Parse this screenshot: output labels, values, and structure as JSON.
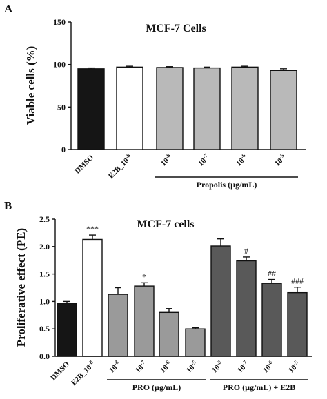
{
  "panels": {
    "a": {
      "letter": "A"
    },
    "b": {
      "letter": "B"
    }
  },
  "colors": {
    "black": "#151515",
    "white": "#ffffff",
    "light_gray": "#b9b9b9",
    "mid_gray": "#9a9a9a",
    "dark_gray": "#595959"
  },
  "chart_data": [
    {
      "type": "bar",
      "title": "MCF-7 Cells",
      "xlabel": "",
      "ylabel": "Viable cells (%)",
      "ylim": [
        0,
        150
      ],
      "yticks": [
        "0",
        "50",
        "100",
        "150"
      ],
      "categories": [
        "DMSO",
        "E2B_10-8",
        "10-8",
        "10-7",
        "10-6",
        "10-5"
      ],
      "values": [
        95,
        97,
        96.5,
        96,
        97,
        93
      ],
      "errors": [
        1,
        1,
        1,
        1,
        1,
        2
      ],
      "fills": [
        "black",
        "white",
        "light_gray",
        "light_gray",
        "light_gray",
        "light_gray"
      ],
      "groups": [
        {
          "label": "Propolis (µg/mL)",
          "from": 2,
          "to": 5
        }
      ],
      "grid": false
    },
    {
      "type": "bar",
      "title": "MCF-7 cells",
      "xlabel": "",
      "ylabel": "Proliferative effect (PE)",
      "ylim": [
        0,
        2.5
      ],
      "yticks": [
        "0.0",
        "0.5",
        "1.0",
        "1.5",
        "2.0",
        "2.5"
      ],
      "categories": [
        "DMSO",
        "E2B_10-8",
        "10-8",
        "10-7",
        "10-6",
        "10-5",
        "10-8",
        "10-7",
        "10-6",
        "10-5"
      ],
      "values": [
        0.97,
        2.13,
        1.13,
        1.28,
        0.8,
        0.5,
        2.01,
        1.74,
        1.33,
        1.16
      ],
      "errors": [
        0.03,
        0.08,
        0.12,
        0.06,
        0.07,
        0.02,
        0.13,
        0.07,
        0.07,
        0.1
      ],
      "annotations": [
        "",
        "***",
        "",
        "*",
        "",
        "",
        "",
        "#",
        "##",
        "###"
      ],
      "fills": [
        "black",
        "white",
        "mid_gray",
        "mid_gray",
        "mid_gray",
        "mid_gray",
        "dark_gray",
        "dark_gray",
        "dark_gray",
        "dark_gray"
      ],
      "groups": [
        {
          "label": "PRO (µg/mL)",
          "from": 2,
          "to": 5
        },
        {
          "label": "PRO (µg/mL) + E2B",
          "from": 6,
          "to": 9
        }
      ],
      "grid": false
    }
  ]
}
